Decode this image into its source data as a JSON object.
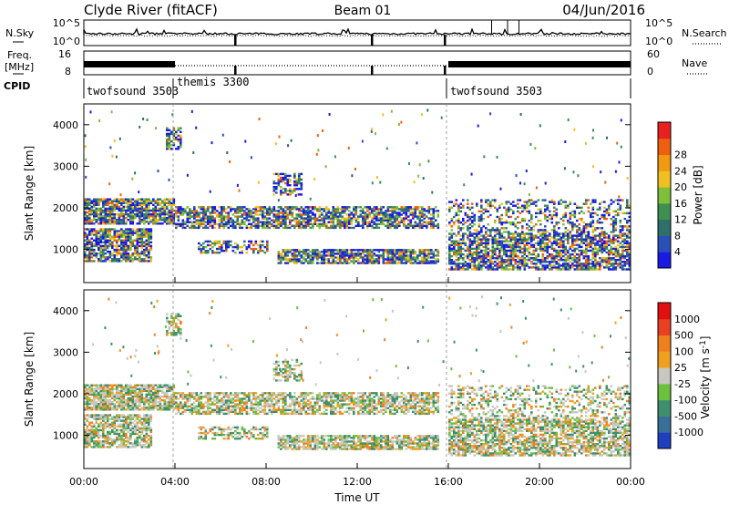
{
  "header": {
    "title": "Clyde River (fitACF)",
    "beam": "Beam 01",
    "date": "04/Jun/2016"
  },
  "chart_data": [
    {
      "type": "line",
      "panel": "noise",
      "left_label": "N.Sky",
      "right_label": "N.Search",
      "left_ticks": [
        "10^5",
        "10^0"
      ],
      "right_ticks": [
        "10^5",
        "10^0"
      ],
      "xlim": [
        0,
        24
      ]
    },
    {
      "type": "line",
      "panel": "frequency",
      "left_label_1": "Freq.",
      "left_label_2": "[MHz]",
      "right_label": "Nave",
      "left_ticks": [
        "16",
        "8"
      ],
      "right_ticks": [
        "60",
        "0"
      ],
      "xlim": [
        0,
        24
      ]
    },
    {
      "type": "table",
      "panel": "cpid",
      "label": "CPID",
      "segments": [
        {
          "start_hour": 0.0,
          "end_hour": 4.0,
          "label": "twofsound 3503"
        },
        {
          "start_hour": 4.0,
          "end_hour": 16.0,
          "label": "themis 3300"
        },
        {
          "start_hour": 16.0,
          "end_hour": 24.0,
          "label": "twofsound 3503"
        }
      ]
    },
    {
      "type": "heatmap",
      "panel": "power",
      "ylabel": "Slant Range [km]",
      "yticks": [
        1000,
        2000,
        3000,
        4000
      ],
      "ylim": [
        200,
        4500
      ],
      "xlim": [
        0,
        24
      ],
      "colorbar": {
        "label": "Power [dB]",
        "ticks": [
          "4",
          "8",
          "12",
          "16",
          "20",
          "24",
          "28"
        ],
        "colors": [
          "#1a1ae6",
          "#2a4fb8",
          "#2f6f6a",
          "#3f8f50",
          "#7fbf3a",
          "#f0c020",
          "#f09a10",
          "#ee6010",
          "#e82020"
        ]
      }
    },
    {
      "type": "heatmap",
      "panel": "velocity",
      "ylabel": "Slant Range [km]",
      "yticks": [
        1000,
        2000,
        3000,
        4000
      ],
      "ylim": [
        200,
        4500
      ],
      "xlim": [
        0,
        24
      ],
      "xlabel": "Time UT",
      "xticks": [
        "00:00",
        "04:00",
        "08:00",
        "12:00",
        "16:00",
        "20:00",
        "00:00"
      ],
      "colorbar": {
        "label": "Velocity [m s^-1]",
        "ticks": [
          "1000",
          "500",
          "100",
          "25",
          "-25",
          "-100",
          "-500",
          "-1000"
        ],
        "colors": [
          "#1f3fbf",
          "#3a6f9a",
          "#3f8f6f",
          "#6cc040",
          "#c8c8c0",
          "#f0a020",
          "#ef8020",
          "#e84020",
          "#e01010"
        ]
      }
    }
  ]
}
